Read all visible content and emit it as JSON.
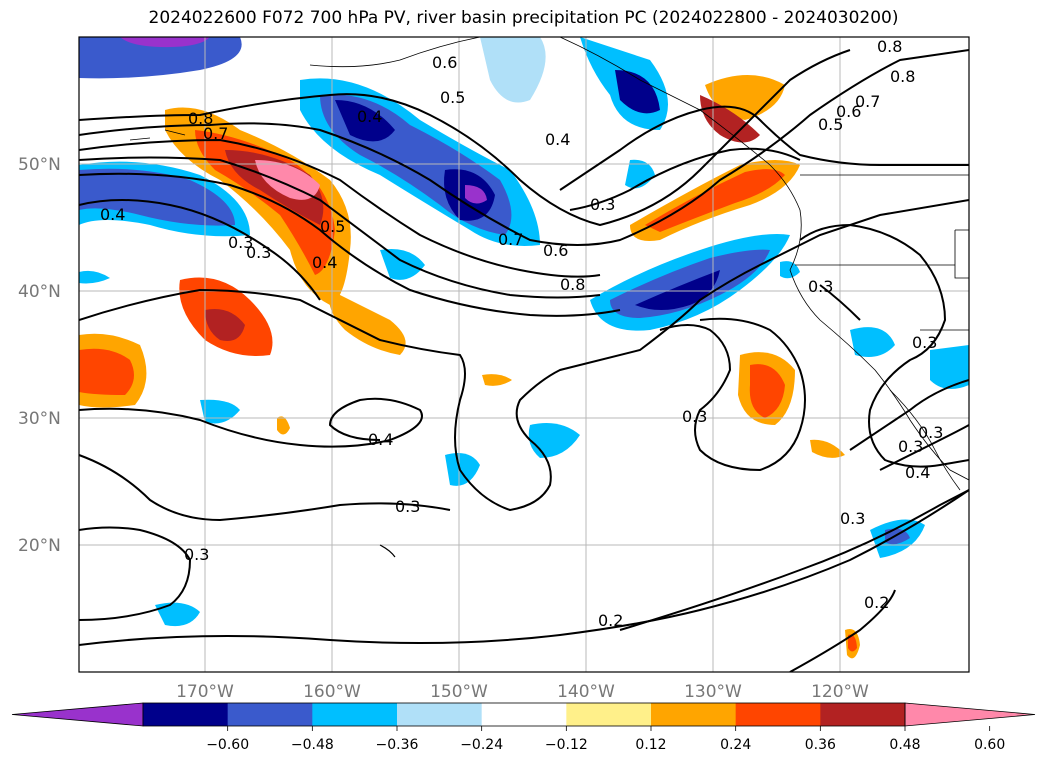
{
  "title": "2024022600 F072 700 hPa PV, river basin precipitation PC (2024022800 - 2024030200)",
  "lat_ticks": [
    "50°N",
    "40°N",
    "30°N",
    "20°N"
  ],
  "lon_ticks": [
    "170°W",
    "160°W",
    "150°W",
    "140°W",
    "130°W",
    "120°W"
  ],
  "colorbar": {
    "colors": [
      "#9932cc",
      "#00008b",
      "#3a5acc",
      "#00bfff",
      "#b0e0f8",
      "#ffffff",
      "#fff08a",
      "#ffa500",
      "#ff4500",
      "#b22222",
      "#ff88aa"
    ],
    "tick_labels": [
      "−0.60",
      "−0.48",
      "−0.36",
      "−0.24",
      "−0.12",
      "0.12",
      "0.24",
      "0.36",
      "0.48",
      "0.60"
    ]
  },
  "contour_labels": [
    "0.8",
    "0.6",
    "0.5",
    "0.4",
    "0.3",
    "0.8",
    "0.7",
    "0.8",
    "0.7",
    "0.6",
    "0.5",
    "0.4",
    "0.3",
    "0.4",
    "0.5",
    "0.4",
    "0.3",
    "0.7",
    "0.6",
    "0.8",
    "0.3",
    "0.3",
    "0.3",
    "0.4",
    "0.3",
    "0.3",
    "0.3",
    "0.4",
    "0.3",
    "0.2",
    "0.2",
    "0.3"
  ]
}
